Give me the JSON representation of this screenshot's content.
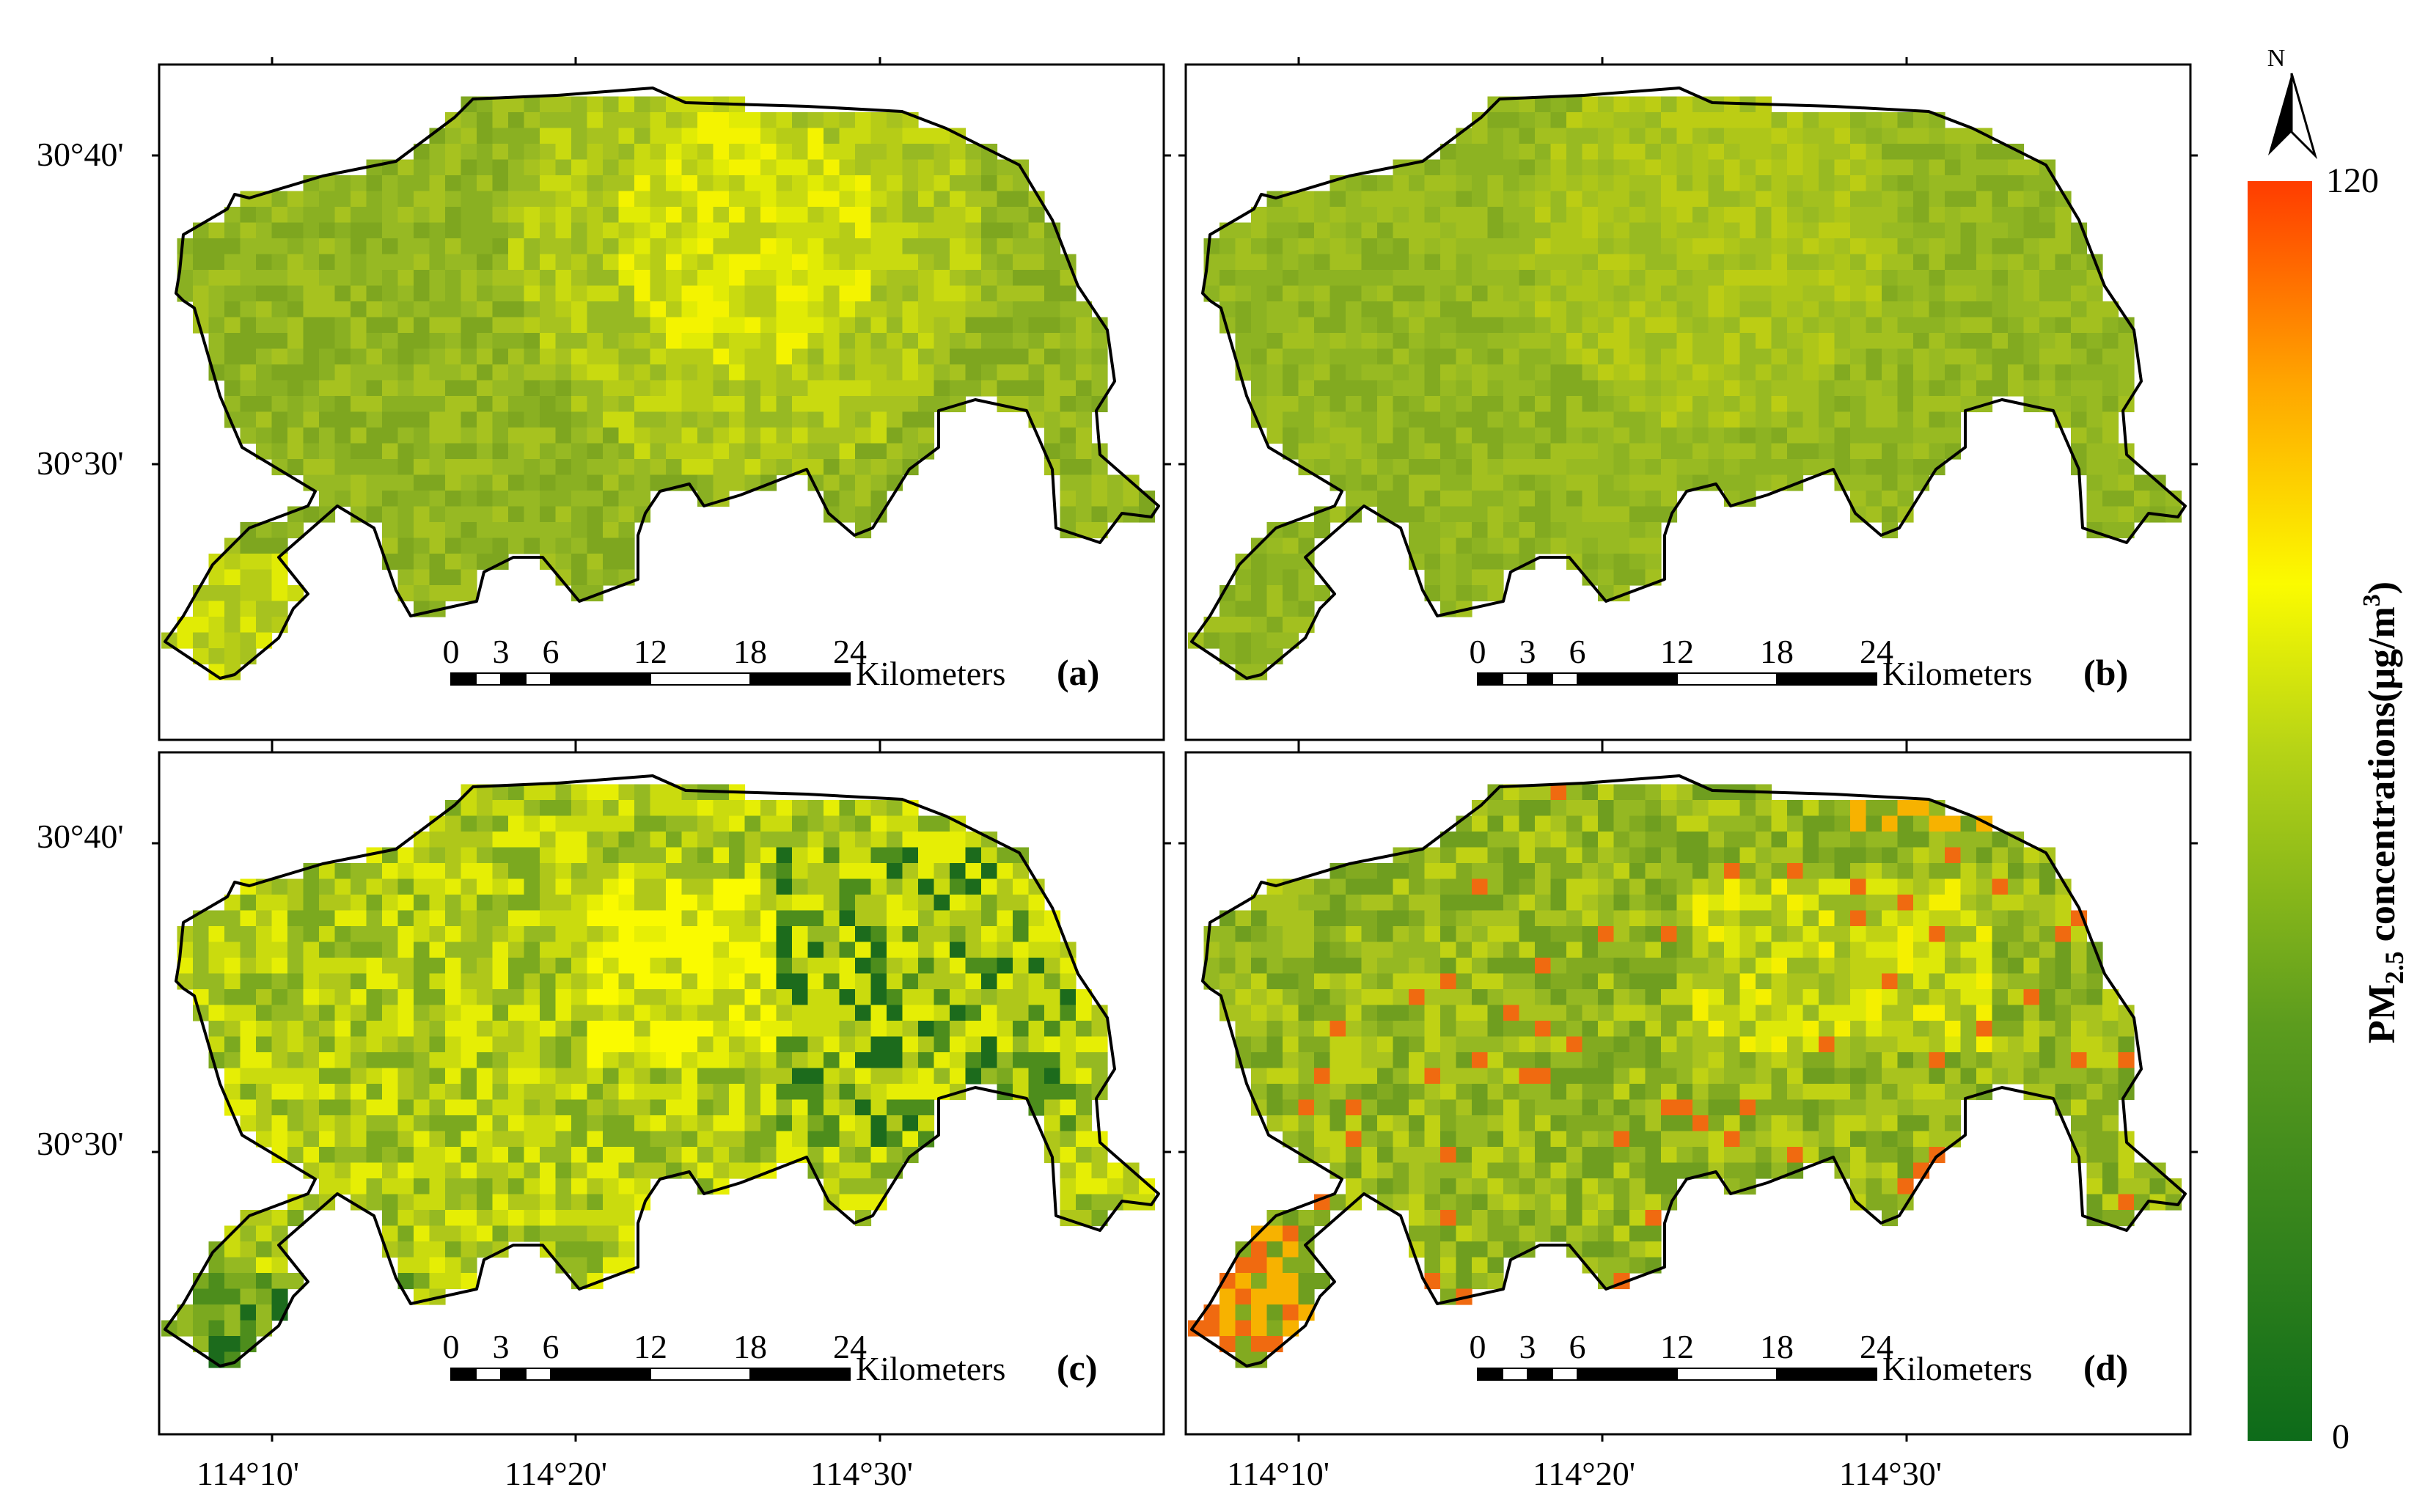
{
  "figure": {
    "panels": [
      {
        "id": "a",
        "label": "(a)",
        "palette": "a"
      },
      {
        "id": "b",
        "label": "(b)",
        "palette": "b"
      },
      {
        "id": "c",
        "label": "(c)",
        "palette": "c"
      },
      {
        "id": "d",
        "label": "(d)",
        "palette": "d"
      }
    ],
    "lat_labels": [
      "30°40'",
      "30°30'"
    ],
    "lon_labels": [
      "114°10'",
      "114°20'",
      "114°30'"
    ],
    "scale_bar": {
      "ticks": [
        "0",
        "3",
        "6",
        "12",
        "18",
        "24"
      ],
      "unit": "Kilometers"
    },
    "north_arrow": {
      "label": "N"
    },
    "colorbar": {
      "max_label": "120",
      "min_label": "0",
      "vmin": 0,
      "vmax": 120,
      "title_prefix": "PM",
      "title_sub": "2.5",
      "title_mid": " concentrations(μg/m",
      "title_sup": "3",
      "title_suffix": ")",
      "colors": [
        "#0d6b1a",
        "#5c9c1e",
        "#b7d416",
        "#fbfb00",
        "#ffa500",
        "#ff3c00"
      ]
    },
    "colors": {
      "boundary": "#000000",
      "frame": "#000000"
    }
  }
}
